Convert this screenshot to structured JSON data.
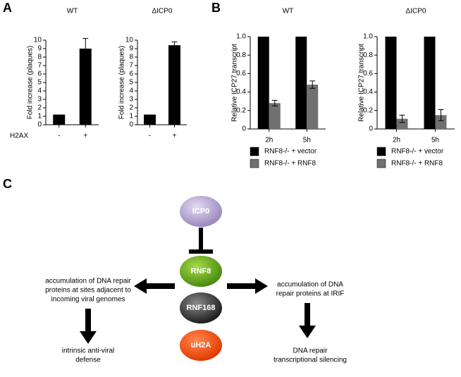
{
  "panel_labels": [
    "A",
    "B",
    "C"
  ],
  "chart_data": [
    {
      "type": "bar",
      "title": "WT",
      "ylabel": "Fold increase (plaques)",
      "xlabel": "H2AX",
      "categories": [
        "-",
        "+"
      ],
      "values": [
        1.2,
        9.0
      ],
      "errors": [
        null,
        1.2
      ],
      "color": "#000000",
      "ylim": [
        0,
        10
      ],
      "yticks": [
        0,
        1,
        2,
        3,
        4,
        5,
        6,
        7,
        8,
        9,
        10
      ]
    },
    {
      "type": "bar",
      "title": "ΔICP0",
      "ylabel": "Fold increase (plaques)",
      "categories": [
        "-",
        "+"
      ],
      "values": [
        1.2,
        9.4
      ],
      "errors": [
        null,
        0.4
      ],
      "color": "#000000",
      "ylim": [
        0,
        10
      ],
      "yticks": [
        0,
        1,
        2,
        3,
        4,
        5,
        6,
        7,
        8,
        9,
        10
      ]
    },
    {
      "type": "bar",
      "title": "WT",
      "ylabel": "Relative ICP27 transcript",
      "categories": [
        "2h",
        "5h"
      ],
      "series": [
        {
          "name": "RNF8-/- + vector",
          "color": "#000000",
          "values": [
            1.0,
            1.0
          ]
        },
        {
          "name": "RNF8-/- + RNF8",
          "color": "#707070",
          "values": [
            0.28,
            0.48
          ],
          "errors": [
            0.03,
            0.04
          ]
        }
      ],
      "ylim": [
        0,
        1
      ],
      "yticks": [
        0,
        0.2,
        0.4,
        0.6,
        0.8,
        {
          "value": 1,
          "label": "1.0"
        }
      ]
    },
    {
      "type": "bar",
      "title": "ΔICP0",
      "ylabel": "Relative ICP27 transcript",
      "categories": [
        "2h",
        "5h"
      ],
      "series": [
        {
          "name": "RNF8-/- + vector",
          "color": "#000000",
          "values": [
            1.0,
            1.0
          ]
        },
        {
          "name": "RNF8-/- + RNF8",
          "color": "#707070",
          "values": [
            0.11,
            0.15
          ],
          "errors": [
            0.04,
            0.06
          ]
        }
      ],
      "ylim": [
        0,
        1
      ],
      "yticks": [
        0,
        0.2,
        0.4,
        0.6,
        0.8,
        {
          "value": 1,
          "label": "1.0"
        }
      ]
    }
  ],
  "diagram": {
    "nodes": [
      {
        "label": "ICP0"
      },
      {
        "label": "RNF8"
      },
      {
        "label": "RNF168"
      },
      {
        "label": "uH2A"
      }
    ],
    "left_effect": {
      "lines": [
        "accumulation of DNA repair",
        "proteins at sites adjacent to",
        "incoming viral genomes"
      ]
    },
    "left_outcome": {
      "lines": [
        "intrinsic anti-viral",
        "defense"
      ]
    },
    "right_effect": {
      "lines": [
        "accumulation of DNA",
        "repair proteins at IRIF"
      ]
    },
    "right_outcome": {
      "lines": [
        "DNA repair",
        "transcriptional silencing"
      ]
    }
  }
}
